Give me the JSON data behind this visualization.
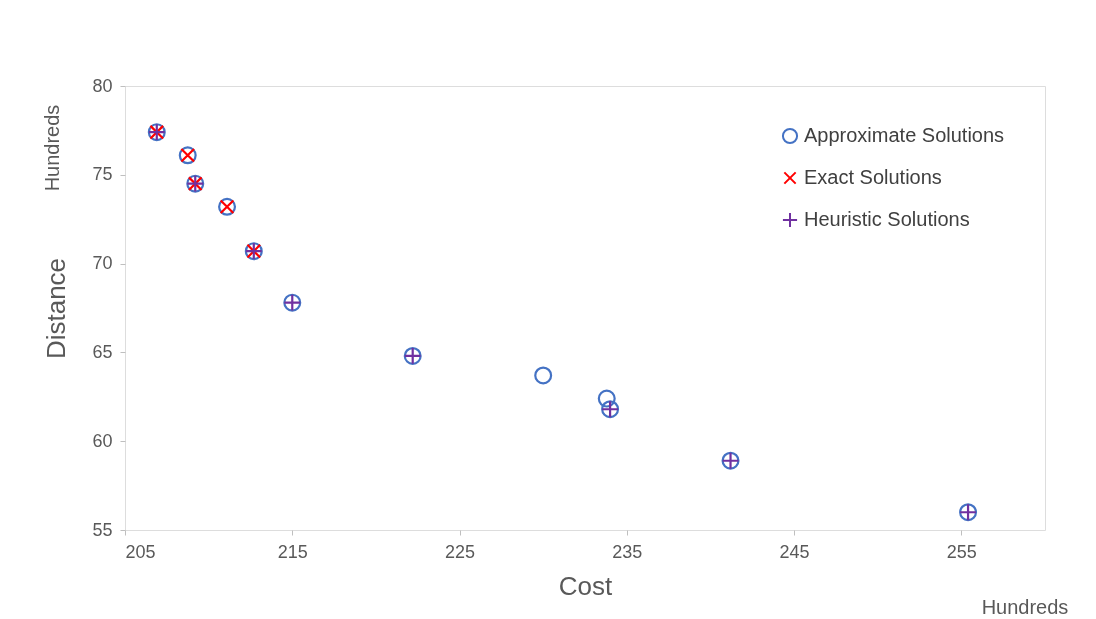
{
  "chart_data": {
    "type": "scatter",
    "xlabel": "Cost",
    "ylabel": "Distance",
    "annotations": [
      "Hundreds",
      "Hundreds"
    ],
    "xlim": [
      205,
      260
    ],
    "xticks": [
      205,
      215,
      225,
      235,
      245,
      255
    ],
    "ylim": [
      55,
      80
    ],
    "yticks": [
      55,
      60,
      65,
      70,
      75,
      80
    ],
    "grid": false,
    "legend": "top right",
    "series": [
      {
        "name": "Approximate Solutions",
        "color": "#4472c4",
        "marker": "circle",
        "x": [
          206.9,
          208.75,
          209.2,
          211.1,
          212.7,
          215.0,
          222.2,
          230.0,
          233.8,
          234.0,
          241.2,
          255.4
        ],
        "values": [
          77.4,
          76.1,
          74.5,
          73.2,
          70.7,
          67.8,
          64.8,
          63.7,
          62.4,
          61.8,
          58.9,
          56.0
        ]
      },
      {
        "name": "Exact Solutions",
        "color": "#ff0000",
        "marker": "x",
        "x": [
          206.9,
          208.75,
          209.2,
          211.1,
          212.7
        ],
        "values": [
          77.4,
          76.1,
          74.5,
          73.2,
          70.7
        ]
      },
      {
        "name": "Heuristic Solutions",
        "color": "#7030a0",
        "marker": "cross",
        "x": [
          206.9,
          209.2,
          212.7,
          215.0,
          222.2,
          234.0,
          241.2,
          255.4
        ],
        "values": [
          77.4,
          74.5,
          70.7,
          67.8,
          64.8,
          61.8,
          58.9,
          56.0
        ]
      }
    ]
  }
}
